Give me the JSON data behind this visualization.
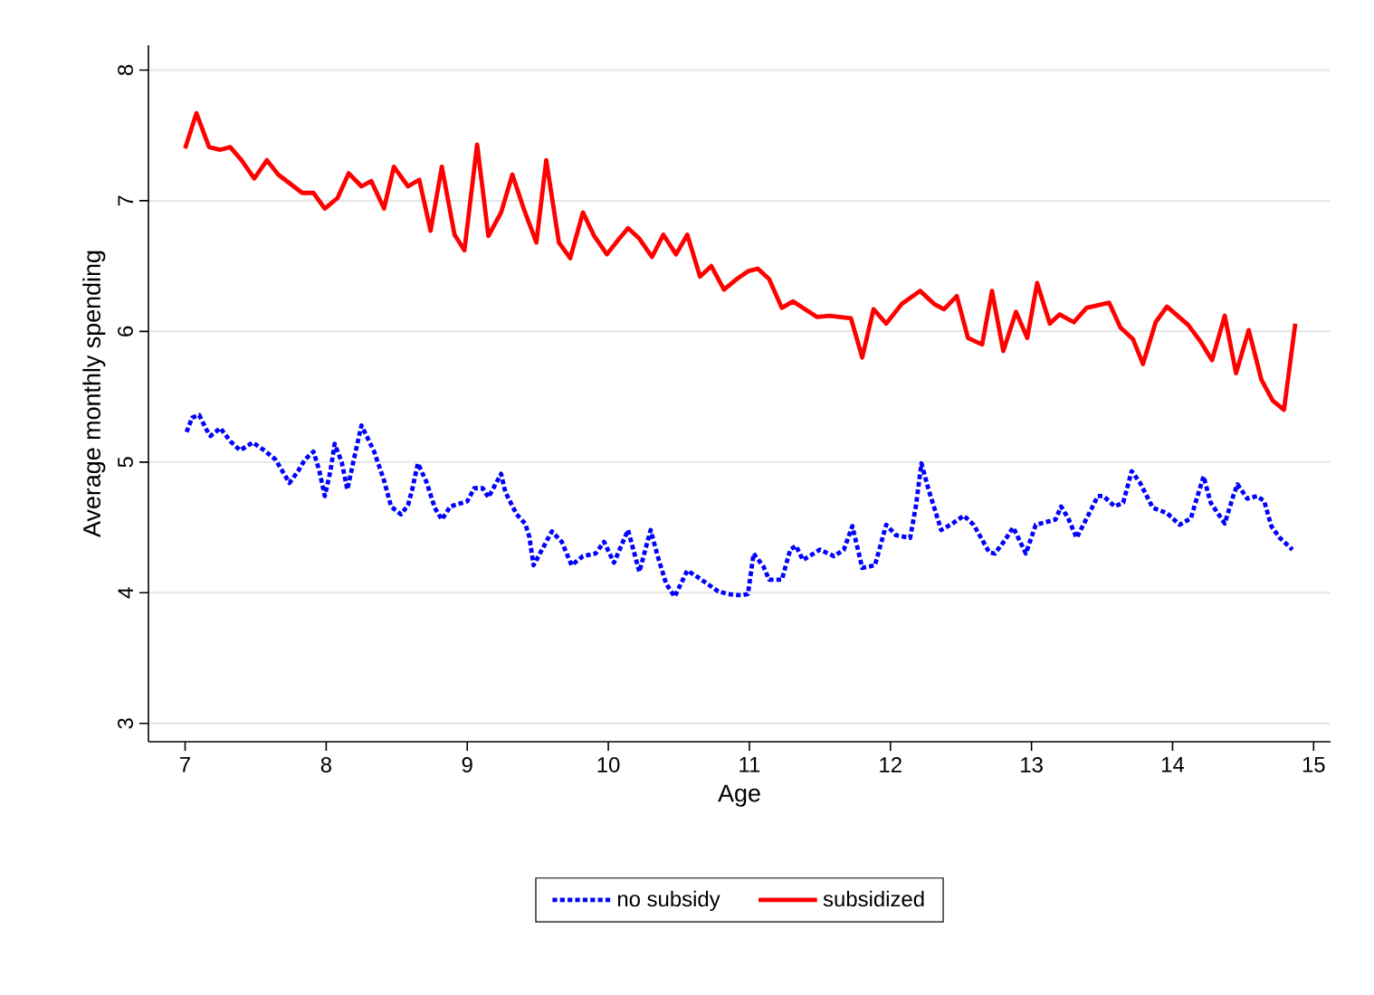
{
  "chart_data": {
    "type": "line",
    "xlabel": "Age",
    "ylabel": "Average monthly spending",
    "xlim": [
      6.74,
      15.12
    ],
    "ylim": [
      2.86,
      8.19
    ],
    "xticks": [
      7,
      8,
      9,
      10,
      11,
      12,
      13,
      14,
      15
    ],
    "yticks": [
      3,
      4,
      5,
      6,
      7,
      8
    ],
    "grid": "y",
    "legend": "bottom",
    "marker": "none",
    "series": [
      {
        "name": "no subsidy",
        "color": "#0000ff",
        "line_style": "dotted",
        "x": [
          7.01,
          7.05,
          7.1,
          7.15,
          7.18,
          7.25,
          7.32,
          7.39,
          7.48,
          7.56,
          7.64,
          7.69,
          7.74,
          7.8,
          7.85,
          7.91,
          7.95,
          7.99,
          8.03,
          8.06,
          8.11,
          8.15,
          8.19,
          8.25,
          8.3,
          8.34,
          8.41,
          8.46,
          8.53,
          8.58,
          8.61,
          8.65,
          8.71,
          8.77,
          8.82,
          8.88,
          8.94,
          9.0,
          9.05,
          9.11,
          9.15,
          9.2,
          9.24,
          9.27,
          9.35,
          9.41,
          9.44,
          9.47,
          9.53,
          9.6,
          9.67,
          9.74,
          9.82,
          9.91,
          9.97,
          10.04,
          10.14,
          10.22,
          10.3,
          10.35,
          10.41,
          10.47,
          10.56,
          10.62,
          10.7,
          10.78,
          10.85,
          10.94,
          10.99,
          11.03,
          11.1,
          11.14,
          11.23,
          11.29,
          11.33,
          11.38,
          11.5,
          11.6,
          11.67,
          11.73,
          11.8,
          11.89,
          11.97,
          12.04,
          12.14,
          12.18,
          12.22,
          12.27,
          12.36,
          12.44,
          12.52,
          12.59,
          12.7,
          12.74,
          12.81,
          12.87,
          12.96,
          13.03,
          13.17,
          13.21,
          13.26,
          13.32,
          13.41,
          13.47,
          13.51,
          13.59,
          13.65,
          13.71,
          13.77,
          13.86,
          13.96,
          14.05,
          14.13,
          14.16,
          14.22,
          14.27,
          14.37,
          14.43,
          14.46,
          14.53,
          14.6,
          14.65,
          14.7,
          14.76,
          14.85
        ],
        "values": [
          5.23,
          5.34,
          5.36,
          5.25,
          5.2,
          5.26,
          5.16,
          5.09,
          5.15,
          5.09,
          5.02,
          4.93,
          4.84,
          4.93,
          5.02,
          5.08,
          4.94,
          4.74,
          4.93,
          5.14,
          5.0,
          4.79,
          4.99,
          5.28,
          5.17,
          5.08,
          4.86,
          4.66,
          4.6,
          4.67,
          4.79,
          4.99,
          4.85,
          4.65,
          4.56,
          4.66,
          4.68,
          4.7,
          4.8,
          4.8,
          4.73,
          4.83,
          4.91,
          4.77,
          4.6,
          4.53,
          4.43,
          4.21,
          4.33,
          4.47,
          4.39,
          4.21,
          4.28,
          4.3,
          4.39,
          4.23,
          4.48,
          4.16,
          4.48,
          4.28,
          4.07,
          3.97,
          4.17,
          4.13,
          4.07,
          4.01,
          3.99,
          3.98,
          3.99,
          4.3,
          4.2,
          4.1,
          4.1,
          4.33,
          4.36,
          4.25,
          4.33,
          4.28,
          4.33,
          4.51,
          4.19,
          4.21,
          4.52,
          4.44,
          4.42,
          4.66,
          4.99,
          4.79,
          4.48,
          4.53,
          4.59,
          4.52,
          4.31,
          4.3,
          4.4,
          4.5,
          4.3,
          4.52,
          4.56,
          4.66,
          4.57,
          4.42,
          4.61,
          4.74,
          4.74,
          4.66,
          4.69,
          4.93,
          4.84,
          4.65,
          4.61,
          4.52,
          4.57,
          4.68,
          4.89,
          4.69,
          4.53,
          4.74,
          4.83,
          4.72,
          4.74,
          4.7,
          4.51,
          4.42,
          4.33
        ]
      },
      {
        "name": "subsidized",
        "color": "#ff0000",
        "line_style": "solid",
        "x": [
          7.0,
          7.08,
          7.17,
          7.25,
          7.32,
          7.4,
          7.49,
          7.58,
          7.66,
          7.83,
          7.91,
          7.99,
          8.08,
          8.16,
          8.25,
          8.32,
          8.41,
          8.48,
          8.58,
          8.66,
          8.74,
          8.82,
          8.91,
          8.98,
          9.07,
          9.15,
          9.24,
          9.32,
          9.4,
          9.49,
          9.56,
          9.65,
          9.73,
          9.82,
          9.9,
          9.99,
          10.07,
          10.14,
          10.22,
          10.31,
          10.39,
          10.48,
          10.56,
          10.65,
          10.73,
          10.82,
          10.91,
          10.99,
          11.06,
          11.14,
          11.23,
          11.31,
          11.48,
          11.57,
          11.72,
          11.8,
          11.88,
          11.97,
          12.08,
          12.21,
          12.31,
          12.38,
          12.47,
          12.55,
          12.65,
          12.72,
          12.8,
          12.89,
          12.97,
          13.04,
          13.13,
          13.2,
          13.3,
          13.39,
          13.55,
          13.63,
          13.72,
          13.79,
          13.88,
          13.96,
          14.11,
          14.2,
          14.28,
          14.37,
          14.45,
          14.54,
          14.63,
          14.71,
          14.79,
          14.87
        ],
        "values": [
          7.4,
          7.67,
          7.41,
          7.39,
          7.41,
          7.31,
          7.17,
          7.31,
          7.2,
          7.06,
          7.06,
          6.94,
          7.02,
          7.21,
          7.11,
          7.15,
          6.94,
          7.26,
          7.11,
          7.16,
          6.77,
          7.26,
          6.74,
          6.62,
          7.43,
          6.73,
          6.91,
          7.2,
          6.94,
          6.68,
          7.31,
          6.68,
          6.56,
          6.91,
          6.73,
          6.59,
          6.7,
          6.79,
          6.71,
          6.57,
          6.74,
          6.59,
          6.74,
          6.42,
          6.5,
          6.32,
          6.4,
          6.46,
          6.48,
          6.4,
          6.18,
          6.23,
          6.11,
          6.12,
          6.1,
          5.8,
          6.17,
          6.06,
          6.21,
          6.31,
          6.21,
          6.17,
          6.27,
          5.95,
          5.9,
          6.31,
          5.85,
          6.15,
          5.95,
          6.37,
          6.06,
          6.13,
          6.07,
          6.18,
          6.22,
          6.03,
          5.94,
          5.75,
          6.07,
          6.19,
          6.05,
          5.92,
          5.78,
          6.12,
          5.68,
          6.01,
          5.63,
          5.47,
          5.4,
          6.06
        ]
      }
    ]
  }
}
